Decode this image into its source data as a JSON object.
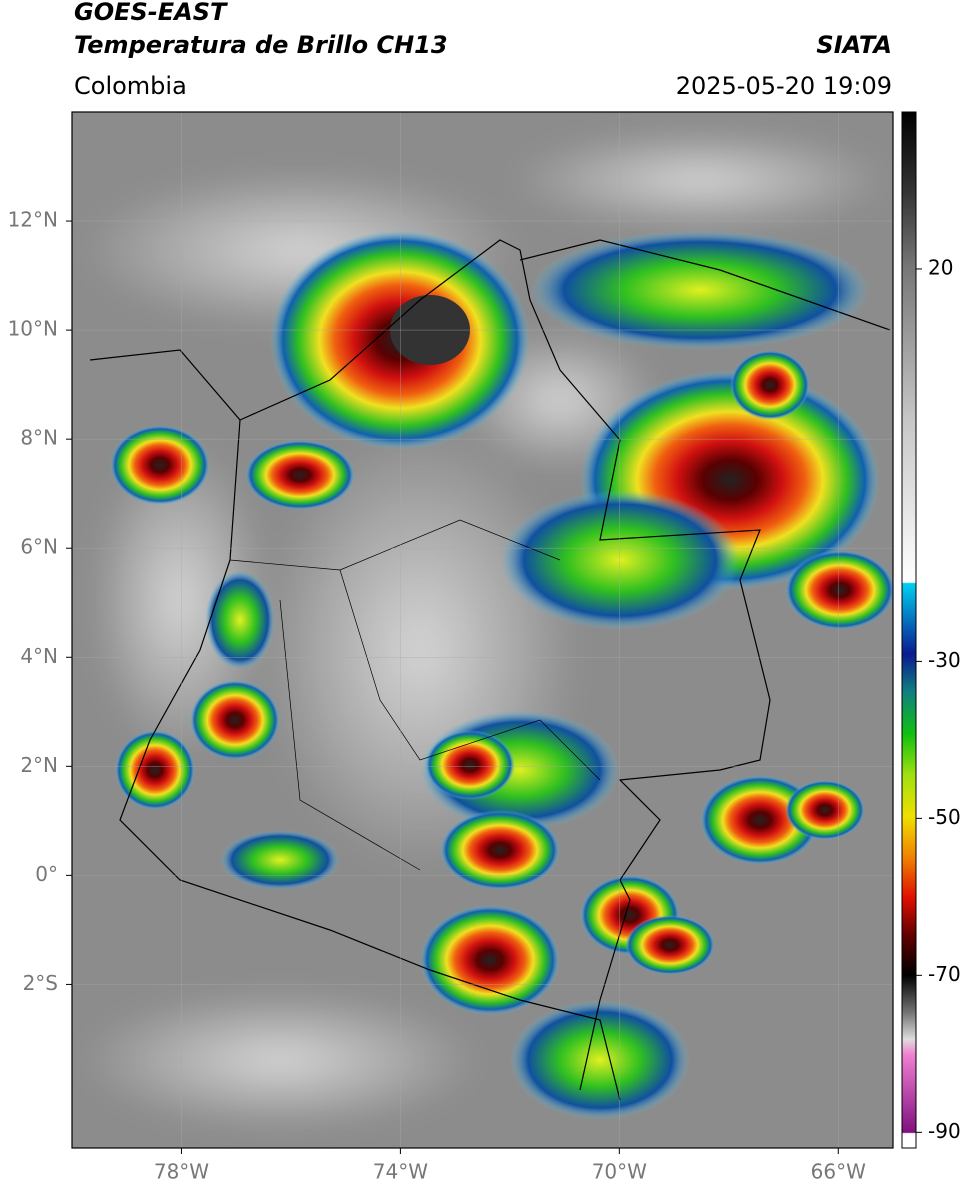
{
  "header": {
    "title": "GOES-EAST",
    "subtitle": "Temperatura de Brillo CH13",
    "region": "Colombia",
    "source": "SIATA",
    "datetime": "2025-05-20 19:09"
  },
  "map": {
    "xlim": [
      -80,
      -65
    ],
    "ylim": [
      -5,
      14
    ],
    "xticks": [
      {
        "value": -78,
        "label": "78°W"
      },
      {
        "value": -74,
        "label": "74°W"
      },
      {
        "value": -70,
        "label": "70°W"
      },
      {
        "value": -66,
        "label": "66°W"
      }
    ],
    "yticks": [
      {
        "value": 12,
        "label": "12°N"
      },
      {
        "value": 10,
        "label": "10°N"
      },
      {
        "value": 8,
        "label": "8°N"
      },
      {
        "value": 6,
        "label": "6°N"
      },
      {
        "value": 4,
        "label": "4°N"
      },
      {
        "value": 2,
        "label": "2°N"
      },
      {
        "value": 0,
        "label": "0°"
      },
      {
        "value": -2,
        "label": "2°S"
      }
    ],
    "grid": true
  },
  "colorbar": {
    "lim": [
      -92,
      40
    ],
    "ticks": [
      20,
      -30,
      -50,
      -70,
      -90
    ]
  }
}
